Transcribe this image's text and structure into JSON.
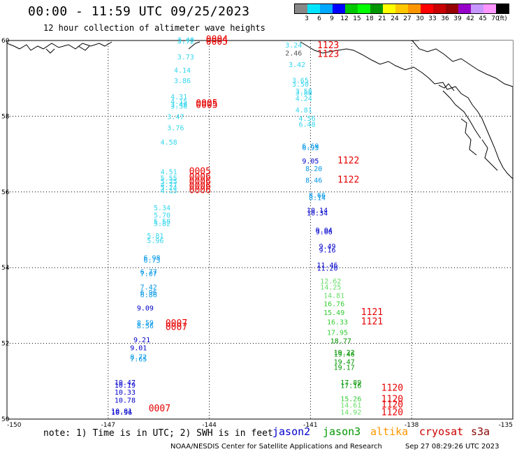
{
  "header": {
    "title": "00:00 - 11:59 UTC 09/25/2023",
    "subtitle": "12 hour collection of altimeter wave heights"
  },
  "colorbar": {
    "colors": [
      "#888888",
      "#00e5ff",
      "#00a8ff",
      "#0000ff",
      "#00c800",
      "#00ff00",
      "#009600",
      "#ffff00",
      "#ffc800",
      "#ff9600",
      "#ff0000",
      "#c80000",
      "#960000",
      "#9600c8",
      "#c896ff",
      "#ff96ff",
      "#000000"
    ],
    "labels": [
      "3",
      "6",
      "9",
      "12",
      "15",
      "18",
      "21",
      "24",
      "27",
      "30",
      "33",
      "36",
      "39",
      "42",
      "45",
      "70",
      "(ft)"
    ]
  },
  "footer": {
    "note": "note: 1) Time is in UTC; 2) SWH is in feet",
    "credit": "NOAA/NESDIS Center for Satellite Applications and Research",
    "generated": "Sep 27 08:29:26 UTC 2023"
  },
  "satellites": [
    {
      "name": "jason2",
      "color": "#0000cc"
    },
    {
      "name": "jason3",
      "color": "#009600"
    },
    {
      "name": "altika",
      "color": "#ff9600"
    },
    {
      "name": "cryosat",
      "color": "#cc0000"
    },
    {
      "name": "s3a",
      "color": "#880000"
    }
  ],
  "axes": {
    "lon_ticks": [
      "-150",
      "-147",
      "-144",
      "-141",
      "-138",
      "-135"
    ],
    "lat_ticks": [
      "60",
      "58",
      "56",
      "54",
      "52",
      "50"
    ],
    "lon_range": [
      -150,
      -135
    ],
    "lat_range": [
      50,
      60
    ]
  },
  "chart_data": {
    "type": "scatter",
    "colors": {
      "cyan": "#00c8e6",
      "lcyan": "#33d6ee",
      "sky": "#0096e6",
      "blue": "#0000cc",
      "gray": "#555555",
      "green": "#009600",
      "lgreen": "#33cc33",
      "lime": "#66dd66",
      "red": "#e60000"
    },
    "points": [
      {
        "lon": -144.7,
        "lat": 59.95,
        "t": "3.48",
        "c": "lcyan"
      },
      {
        "lon": -144.7,
        "lat": 59.92,
        "t": "3.72",
        "c": "lcyan"
      },
      {
        "lon": -144.7,
        "lat": 59.5,
        "t": "3.73",
        "c": "lcyan"
      },
      {
        "lon": -144.8,
        "lat": 59.15,
        "t": "4.14",
        "c": "lcyan"
      },
      {
        "lon": -144.8,
        "lat": 58.87,
        "t": "3.86",
        "c": "lcyan"
      },
      {
        "lon": -144.9,
        "lat": 58.45,
        "t": "4.31",
        "c": "lcyan"
      },
      {
        "lon": -144.9,
        "lat": 58.33,
        "t": "4.15",
        "c": "lcyan"
      },
      {
        "lon": -144.9,
        "lat": 58.25,
        "t": "3.49",
        "c": "lcyan"
      },
      {
        "lon": -144.9,
        "lat": 58.2,
        "t": "3.56",
        "c": "lcyan"
      },
      {
        "lon": -145.0,
        "lat": 57.92,
        "t": "3.47",
        "c": "lcyan"
      },
      {
        "lon": -145.0,
        "lat": 57.63,
        "t": "3.76",
        "c": "lcyan"
      },
      {
        "lon": -145.2,
        "lat": 57.25,
        "t": "4.58",
        "c": "lcyan"
      },
      {
        "lon": -145.2,
        "lat": 56.47,
        "t": "4.51",
        "c": "lcyan"
      },
      {
        "lon": -145.2,
        "lat": 56.3,
        "t": "5.55",
        "c": "lcyan"
      },
      {
        "lon": -145.2,
        "lat": 56.22,
        "t": "5.25",
        "c": "lcyan"
      },
      {
        "lon": -145.2,
        "lat": 56.13,
        "t": "4.77",
        "c": "lcyan"
      },
      {
        "lon": -145.2,
        "lat": 56.05,
        "t": "5.24",
        "c": "lcyan"
      },
      {
        "lon": -145.2,
        "lat": 55.97,
        "t": "4.15",
        "c": "lcyan"
      },
      {
        "lon": -145.4,
        "lat": 55.52,
        "t": "5.34",
        "c": "lcyan"
      },
      {
        "lon": -145.4,
        "lat": 55.32,
        "t": "5.70",
        "c": "lcyan"
      },
      {
        "lon": -145.4,
        "lat": 55.16,
        "t": "5.58",
        "c": "lcyan"
      },
      {
        "lon": -145.4,
        "lat": 55.1,
        "t": "5.82",
        "c": "lcyan"
      },
      {
        "lon": -145.6,
        "lat": 54.78,
        "t": "5.81",
        "c": "lcyan"
      },
      {
        "lon": -145.6,
        "lat": 54.65,
        "t": "5.96",
        "c": "lcyan"
      },
      {
        "lon": -145.7,
        "lat": 54.2,
        "t": "6.98",
        "c": "sky"
      },
      {
        "lon": -145.7,
        "lat": 54.13,
        "t": "6.73",
        "c": "sky"
      },
      {
        "lon": -145.8,
        "lat": 53.83,
        "t": "6.77",
        "c": "sky"
      },
      {
        "lon": -145.8,
        "lat": 53.77,
        "t": "7.07",
        "c": "sky"
      },
      {
        "lon": -145.8,
        "lat": 53.42,
        "t": "7.42",
        "c": "sky"
      },
      {
        "lon": -145.8,
        "lat": 53.28,
        "t": "6.96",
        "c": "sky"
      },
      {
        "lon": -145.8,
        "lat": 53.22,
        "t": "6.86",
        "c": "sky"
      },
      {
        "lon": -145.9,
        "lat": 52.87,
        "t": "9.09",
        "c": "blue"
      },
      {
        "lon": -145.9,
        "lat": 52.48,
        "t": "8.59",
        "c": "sky"
      },
      {
        "lon": -145.9,
        "lat": 52.4,
        "t": "8.56",
        "c": "sky"
      },
      {
        "lon": -146.0,
        "lat": 52.03,
        "t": "9.21",
        "c": "blue"
      },
      {
        "lon": -146.1,
        "lat": 51.82,
        "t": "9.01",
        "c": "blue"
      },
      {
        "lon": -146.1,
        "lat": 51.58,
        "t": "8.72",
        "c": "sky"
      },
      {
        "lon": -146.1,
        "lat": 51.52,
        "t": "7.65",
        "c": "sky"
      },
      {
        "lon": -146.5,
        "lat": 50.9,
        "t": "10.47",
        "c": "blue"
      },
      {
        "lon": -146.5,
        "lat": 50.83,
        "t": "10.19",
        "c": "blue"
      },
      {
        "lon": -146.5,
        "lat": 50.65,
        "t": "10.33",
        "c": "blue"
      },
      {
        "lon": -146.5,
        "lat": 50.43,
        "t": "10.78",
        "c": "blue"
      },
      {
        "lon": -146.6,
        "lat": 50.15,
        "t": "10.81",
        "c": "blue"
      },
      {
        "lon": -146.6,
        "lat": 50.11,
        "t": "10.96",
        "c": "blue"
      },
      {
        "lon": -141.5,
        "lat": 59.82,
        "t": "3.24",
        "c": "lcyan"
      },
      {
        "lon": -141.5,
        "lat": 59.6,
        "t": "2.46",
        "c": "gray"
      },
      {
        "lon": -141.4,
        "lat": 59.3,
        "t": "3.42",
        "c": "lcyan"
      },
      {
        "lon": -141.3,
        "lat": 58.88,
        "t": "3.65",
        "c": "lcyan"
      },
      {
        "lon": -141.3,
        "lat": 58.78,
        "t": "3.50",
        "c": "lcyan"
      },
      {
        "lon": -141.2,
        "lat": 58.6,
        "t": "3.58",
        "c": "lcyan"
      },
      {
        "lon": -141.2,
        "lat": 58.55,
        "t": "3.88",
        "c": "lcyan"
      },
      {
        "lon": -141.2,
        "lat": 58.4,
        "t": "4.24",
        "c": "lcyan"
      },
      {
        "lon": -141.2,
        "lat": 58.1,
        "t": "4.81",
        "c": "lcyan"
      },
      {
        "lon": -141.1,
        "lat": 57.88,
        "t": "4.56",
        "c": "lcyan"
      },
      {
        "lon": -141.1,
        "lat": 57.72,
        "t": "6.48",
        "c": "lcyan"
      },
      {
        "lon": -141.0,
        "lat": 57.15,
        "t": "6.69",
        "c": "sky"
      },
      {
        "lon": -141.0,
        "lat": 57.1,
        "t": "6.95",
        "c": "sky"
      },
      {
        "lon": -141.0,
        "lat": 56.75,
        "t": "9.05",
        "c": "blue"
      },
      {
        "lon": -140.9,
        "lat": 56.55,
        "t": "8.20",
        "c": "sky"
      },
      {
        "lon": -140.9,
        "lat": 56.25,
        "t": "8.46",
        "c": "sky"
      },
      {
        "lon": -140.8,
        "lat": 55.85,
        "t": "8.66",
        "c": "sky"
      },
      {
        "lon": -140.8,
        "lat": 55.78,
        "t": "8.14",
        "c": "sky"
      },
      {
        "lon": -140.8,
        "lat": 55.45,
        "t": "10.14",
        "c": "blue"
      },
      {
        "lon": -140.8,
        "lat": 55.38,
        "t": "10.34",
        "c": "blue"
      },
      {
        "lon": -140.6,
        "lat": 54.93,
        "t": "9.04",
        "c": "blue"
      },
      {
        "lon": -140.6,
        "lat": 54.88,
        "t": "9.06",
        "c": "blue"
      },
      {
        "lon": -140.5,
        "lat": 54.5,
        "t": "9.49",
        "c": "blue"
      },
      {
        "lon": -140.5,
        "lat": 54.4,
        "t": "9.16",
        "c": "blue"
      },
      {
        "lon": -140.5,
        "lat": 54.0,
        "t": "11.46",
        "c": "blue"
      },
      {
        "lon": -140.5,
        "lat": 53.92,
        "t": "11.20",
        "c": "blue"
      },
      {
        "lon": -140.4,
        "lat": 53.58,
        "t": "12.62",
        "c": "lime"
      },
      {
        "lon": -140.4,
        "lat": 53.42,
        "t": "14.25",
        "c": "lime"
      },
      {
        "lon": -140.3,
        "lat": 53.2,
        "t": "14.81",
        "c": "lime"
      },
      {
        "lon": -140.3,
        "lat": 52.98,
        "t": "16.76",
        "c": "lgreen"
      },
      {
        "lon": -140.3,
        "lat": 52.75,
        "t": "15.49",
        "c": "lgreen"
      },
      {
        "lon": -140.2,
        "lat": 52.5,
        "t": "16.33",
        "c": "lgreen"
      },
      {
        "lon": -140.2,
        "lat": 52.22,
        "t": "17.95",
        "c": "lgreen"
      },
      {
        "lon": -140.1,
        "lat": 52.0,
        "t": "18.77",
        "c": "green"
      },
      {
        "lon": -140.0,
        "lat": 51.7,
        "t": "19.22",
        "c": "green"
      },
      {
        "lon": -140.0,
        "lat": 51.65,
        "t": "19.46",
        "c": "green"
      },
      {
        "lon": -140.0,
        "lat": 51.45,
        "t": "19.47",
        "c": "green"
      },
      {
        "lon": -140.0,
        "lat": 51.3,
        "t": "19.17",
        "c": "green"
      },
      {
        "lon": -139.8,
        "lat": 50.9,
        "t": "17.89",
        "c": "green"
      },
      {
        "lon": -139.8,
        "lat": 50.82,
        "t": "17.16",
        "c": "green"
      },
      {
        "lon": -139.8,
        "lat": 50.47,
        "t": "15.26",
        "c": "lgreen"
      },
      {
        "lon": -139.8,
        "lat": 50.3,
        "t": "14.61",
        "c": "lime"
      },
      {
        "lon": -139.8,
        "lat": 50.12,
        "t": "14.92",
        "c": "lime"
      }
    ],
    "times": [
      {
        "lon": -144.1,
        "lat": 59.95,
        "t": "0004"
      },
      {
        "lon": -144.1,
        "lat": 59.89,
        "t": "0005"
      },
      {
        "lon": -144.4,
        "lat": 58.27,
        "t": "0005"
      },
      {
        "lon": -144.4,
        "lat": 58.22,
        "t": "0005"
      },
      {
        "lon": -144.6,
        "lat": 56.47,
        "t": "0005"
      },
      {
        "lon": -144.6,
        "lat": 56.32,
        "t": "0006"
      },
      {
        "lon": -144.6,
        "lat": 56.2,
        "t": "0006"
      },
      {
        "lon": -144.6,
        "lat": 56.08,
        "t": "0006"
      },
      {
        "lon": -144.6,
        "lat": 55.97,
        "t": "0006"
      },
      {
        "lon": -145.3,
        "lat": 52.45,
        "t": "0007"
      },
      {
        "lon": -145.3,
        "lat": 52.35,
        "t": "0007"
      },
      {
        "lon": -145.8,
        "lat": 50.2,
        "t": "0007"
      },
      {
        "lon": -140.8,
        "lat": 59.8,
        "t": "1123"
      },
      {
        "lon": -140.8,
        "lat": 59.57,
        "t": "1123"
      },
      {
        "lon": -140.2,
        "lat": 56.75,
        "t": "1122"
      },
      {
        "lon": -140.2,
        "lat": 56.25,
        "t": "1122"
      },
      {
        "lon": -139.5,
        "lat": 52.75,
        "t": "1121"
      },
      {
        "lon": -139.5,
        "lat": 52.5,
        "t": "1121"
      },
      {
        "lon": -138.9,
        "lat": 50.75,
        "t": "1120"
      },
      {
        "lon": -138.9,
        "lat": 50.45,
        "t": "1120"
      },
      {
        "lon": -138.9,
        "lat": 50.3,
        "t": "1120"
      },
      {
        "lon": -138.9,
        "lat": 50.1,
        "t": "1120"
      }
    ]
  }
}
